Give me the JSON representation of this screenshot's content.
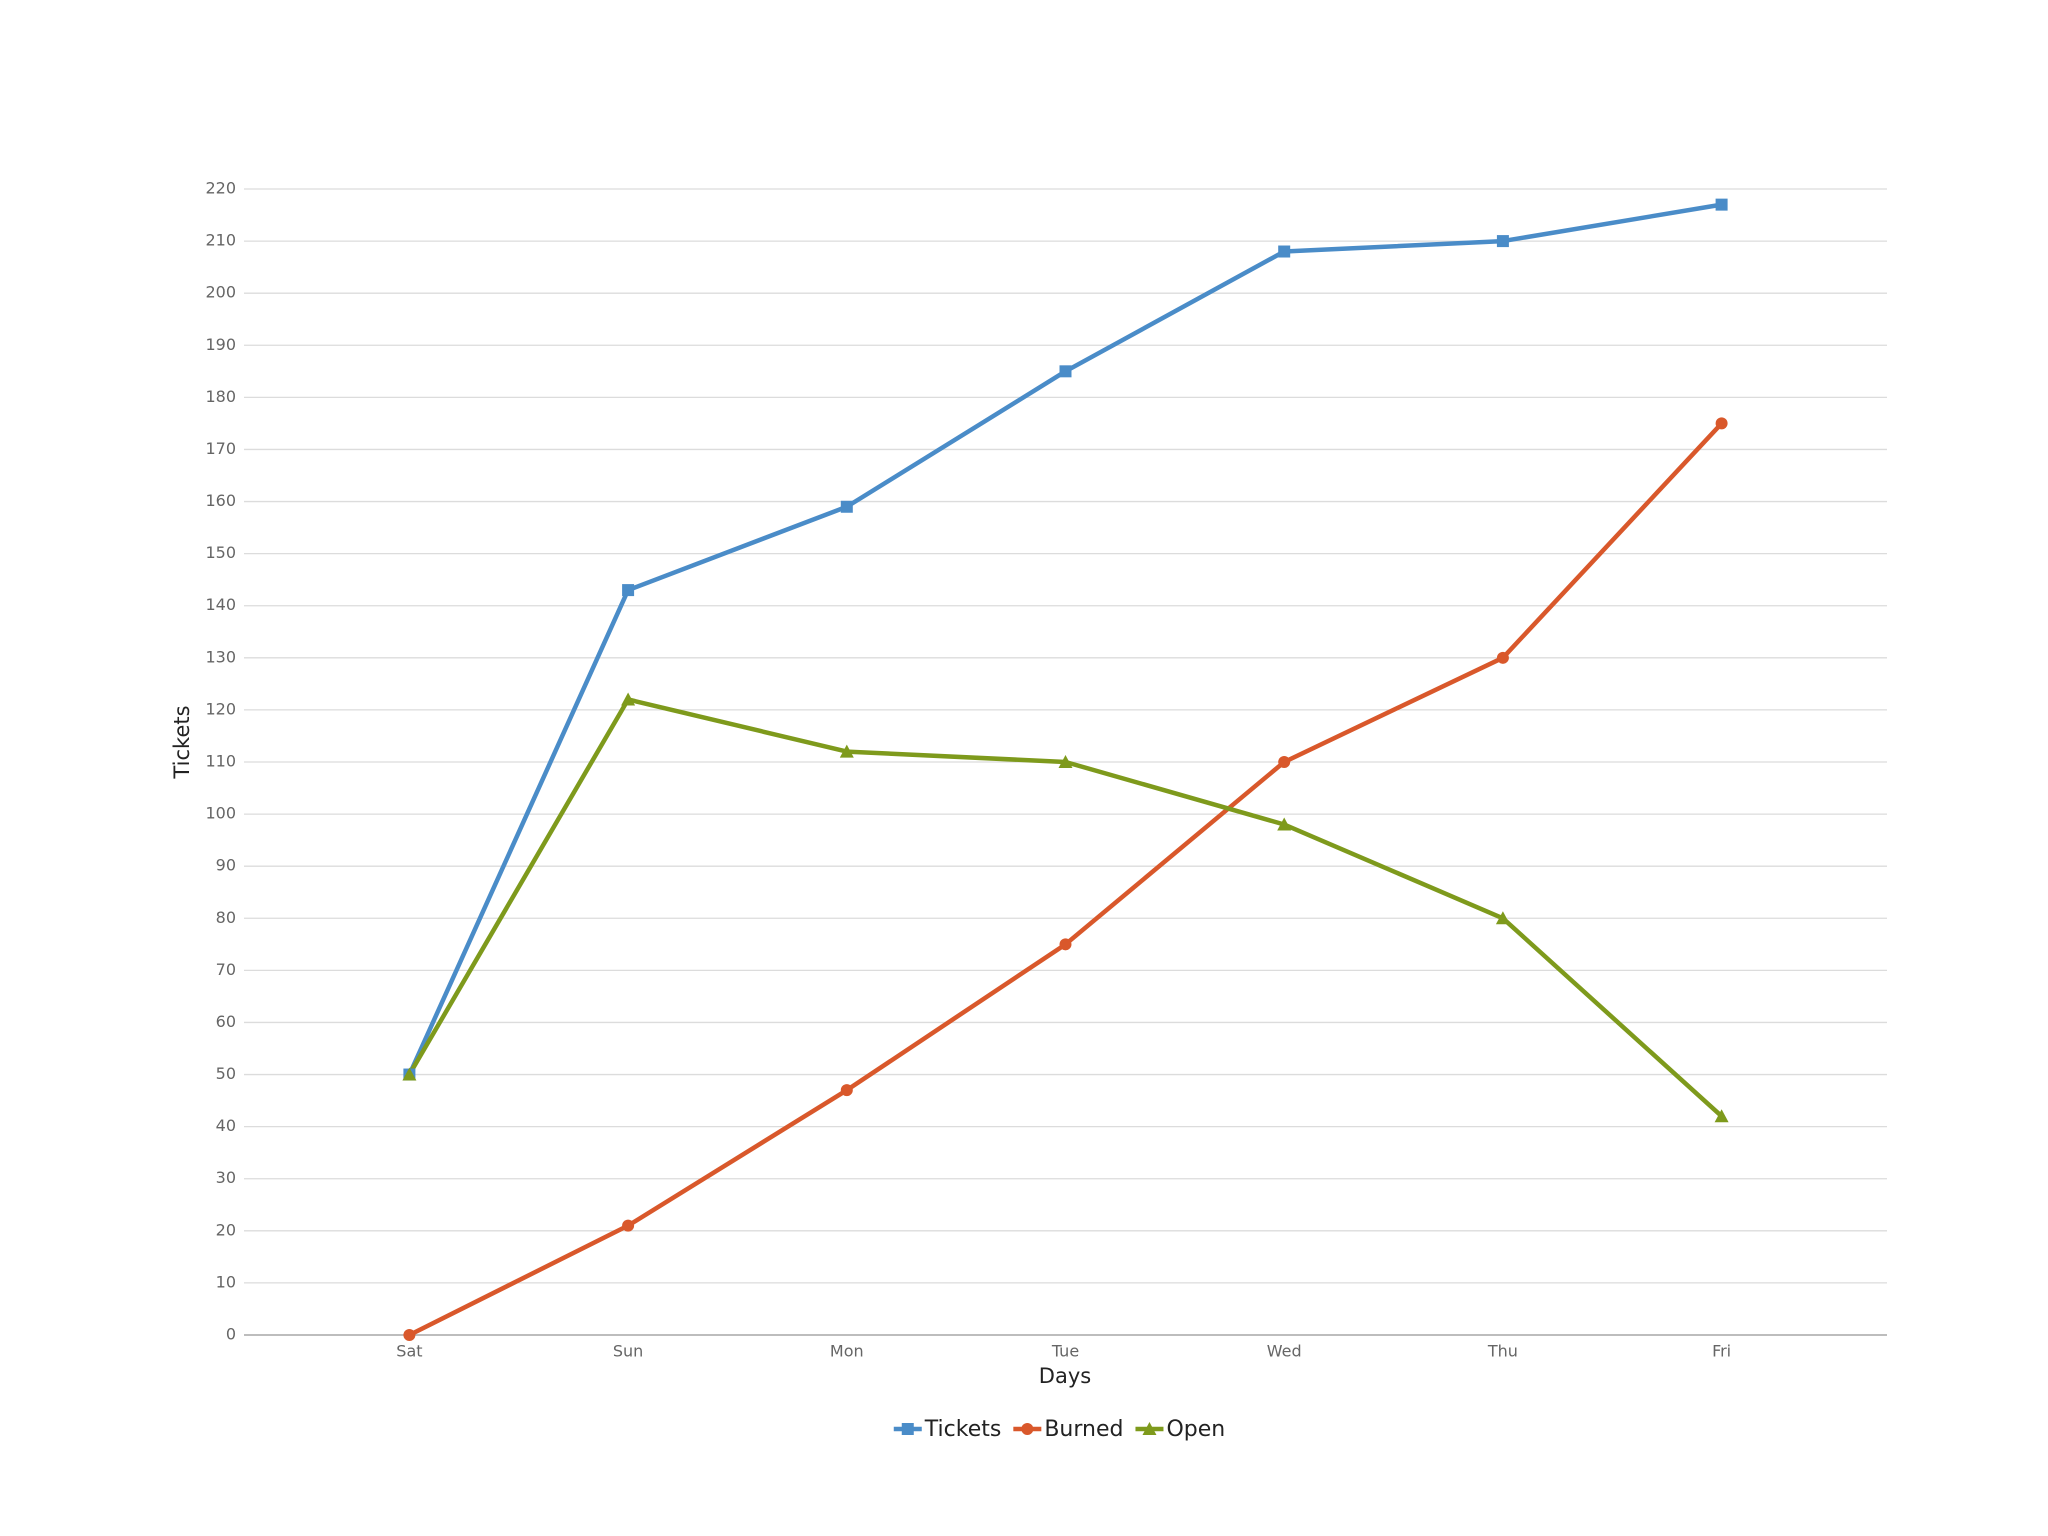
{
  "chart_data": {
    "type": "line",
    "x_label": "Days",
    "y_label": "Tickets",
    "categories": [
      "Sat",
      "Sun",
      "Mon",
      "Tue",
      "Wed",
      "Thu",
      "Fri"
    ],
    "series": [
      {
        "name": "Tickets",
        "color": "#4a8cc8",
        "marker": "square",
        "values": [
          50,
          143,
          159,
          185,
          208,
          210,
          217
        ]
      },
      {
        "name": "Burned",
        "color": "#d9582b",
        "marker": "circle",
        "values": [
          0,
          21,
          47,
          75,
          110,
          130,
          175
        ]
      },
      {
        "name": "Open",
        "color": "#7e9a1c",
        "marker": "triangle",
        "values": [
          50,
          122,
          112,
          110,
          98,
          80,
          42
        ]
      }
    ],
    "ylim": [
      0,
      220
    ],
    "yticks": [
      0,
      10,
      20,
      30,
      40,
      50,
      60,
      70,
      80,
      90,
      100,
      110,
      120,
      130,
      140,
      150,
      160,
      170,
      180,
      190,
      200,
      210,
      220
    ],
    "grid": true,
    "legend": "bottom"
  }
}
